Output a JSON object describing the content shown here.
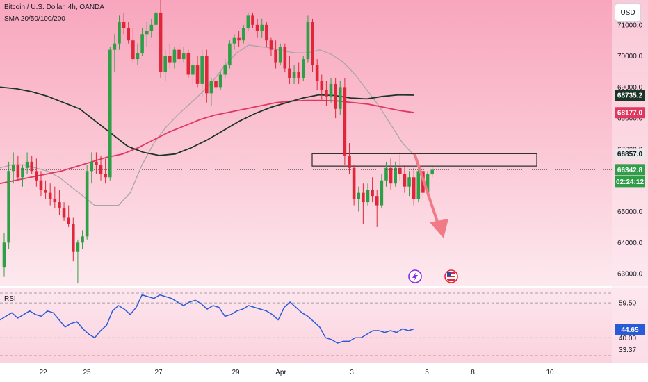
{
  "header": {
    "symbol_title": "Bitcoin / U.S. Dollar, 4h, OANDA",
    "indicator_label": "SMA 20/50/100/200",
    "currency_button": "USD"
  },
  "rsi_panel": {
    "label": "RSI",
    "ticks": [
      "59.50",
      "40.00",
      "33.37"
    ],
    "value_badge": "44.65"
  },
  "price_badges": {
    "sma_dark": "68735.2",
    "sma_red": "68177.0",
    "zone_top": "66857.0",
    "current_price": "66342.8",
    "countdown": "02:24:12"
  },
  "price_axis_ticks": [
    "71000.0",
    "70000.0",
    "69000.0",
    "68000.0",
    "67000.0",
    "65000.0",
    "64000.0",
    "63000.0"
  ],
  "time_axis_labels": [
    "22",
    "25",
    "27",
    "29",
    "Apr",
    "3",
    "5",
    "8",
    "10"
  ],
  "event_icons": [
    "lightning-icon",
    "us-flag-icon"
  ],
  "colors": {
    "bull": "#2e9e47",
    "bear": "#e0273a",
    "sma_dark": "#1a3527",
    "sma_red": "#e0375f",
    "sma_grey": "#a6a6a6",
    "rsi_line": "#2a5bd7",
    "arrow": "#f07b86",
    "price_badge": "#2e9e47",
    "rsi_badge": "#2a5bd7"
  },
  "chart_data": {
    "type": "candlestick",
    "ylim": [
      62600,
      71800
    ],
    "candles": [
      {
        "o": 63200,
        "h": 64300,
        "l": 62900,
        "c": 64000
      },
      {
        "o": 64000,
        "h": 66600,
        "l": 63800,
        "c": 66300
      },
      {
        "o": 66300,
        "h": 66900,
        "l": 65900,
        "c": 66500
      },
      {
        "o": 66500,
        "h": 66800,
        "l": 66000,
        "c": 66100
      },
      {
        "o": 66100,
        "h": 66500,
        "l": 65800,
        "c": 66400
      },
      {
        "o": 66400,
        "h": 66900,
        "l": 66200,
        "c": 66600
      },
      {
        "o": 66600,
        "h": 66800,
        "l": 66200,
        "c": 66300
      },
      {
        "o": 66300,
        "h": 66700,
        "l": 65800,
        "c": 66000
      },
      {
        "o": 66000,
        "h": 66300,
        "l": 65500,
        "c": 65700
      },
      {
        "o": 65700,
        "h": 66000,
        "l": 65400,
        "c": 65600
      },
      {
        "o": 65600,
        "h": 65900,
        "l": 65200,
        "c": 65400
      },
      {
        "o": 65400,
        "h": 65800,
        "l": 65100,
        "c": 65300
      },
      {
        "o": 65300,
        "h": 65700,
        "l": 64900,
        "c": 65100
      },
      {
        "o": 65100,
        "h": 65300,
        "l": 64700,
        "c": 64800
      },
      {
        "o": 64800,
        "h": 65200,
        "l": 64500,
        "c": 64600
      },
      {
        "o": 64600,
        "h": 64800,
        "l": 63400,
        "c": 63700
      },
      {
        "o": 63700,
        "h": 64100,
        "l": 62700,
        "c": 64000
      },
      {
        "o": 64000,
        "h": 64400,
        "l": 63800,
        "c": 64200
      },
      {
        "o": 64200,
        "h": 66500,
        "l": 64100,
        "c": 66300
      },
      {
        "o": 66300,
        "h": 66900,
        "l": 65900,
        "c": 66600
      },
      {
        "o": 66600,
        "h": 66900,
        "l": 66200,
        "c": 66500
      },
      {
        "o": 66500,
        "h": 66800,
        "l": 66000,
        "c": 66200
      },
      {
        "o": 66200,
        "h": 66700,
        "l": 65900,
        "c": 66100
      },
      {
        "o": 66100,
        "h": 70300,
        "l": 66000,
        "c": 70200
      },
      {
        "o": 70200,
        "h": 70700,
        "l": 69500,
        "c": 70400
      },
      {
        "o": 70400,
        "h": 71300,
        "l": 70200,
        "c": 71100
      },
      {
        "o": 71100,
        "h": 71400,
        "l": 70700,
        "c": 70900
      },
      {
        "o": 70900,
        "h": 71100,
        "l": 70400,
        "c": 70500
      },
      {
        "o": 70500,
        "h": 70900,
        "l": 69800,
        "c": 69900
      },
      {
        "o": 69900,
        "h": 70400,
        "l": 69700,
        "c": 70100
      },
      {
        "o": 70100,
        "h": 70900,
        "l": 70000,
        "c": 70700
      },
      {
        "o": 70700,
        "h": 71100,
        "l": 70300,
        "c": 70800
      },
      {
        "o": 70800,
        "h": 71200,
        "l": 70600,
        "c": 71000
      },
      {
        "o": 71000,
        "h": 71600,
        "l": 70800,
        "c": 71400
      },
      {
        "o": 71400,
        "h": 71800,
        "l": 69300,
        "c": 69500
      },
      {
        "o": 69500,
        "h": 70200,
        "l": 69200,
        "c": 70000
      },
      {
        "o": 70000,
        "h": 70400,
        "l": 69600,
        "c": 69800
      },
      {
        "o": 69800,
        "h": 70300,
        "l": 69600,
        "c": 70200
      },
      {
        "o": 70200,
        "h": 70400,
        "l": 69700,
        "c": 69900
      },
      {
        "o": 69900,
        "h": 70300,
        "l": 69800,
        "c": 70100
      },
      {
        "o": 70100,
        "h": 70200,
        "l": 69300,
        "c": 69400
      },
      {
        "o": 69400,
        "h": 69900,
        "l": 69100,
        "c": 69700
      },
      {
        "o": 69700,
        "h": 70000,
        "l": 69000,
        "c": 69100
      },
      {
        "o": 69100,
        "h": 70200,
        "l": 68700,
        "c": 70000
      },
      {
        "o": 70000,
        "h": 70200,
        "l": 68500,
        "c": 68800
      },
      {
        "o": 68800,
        "h": 69300,
        "l": 68400,
        "c": 69200
      },
      {
        "o": 69200,
        "h": 69500,
        "l": 68800,
        "c": 69000
      },
      {
        "o": 69000,
        "h": 69500,
        "l": 68900,
        "c": 69400
      },
      {
        "o": 69400,
        "h": 69900,
        "l": 69300,
        "c": 69700
      },
      {
        "o": 69700,
        "h": 70500,
        "l": 69600,
        "c": 70400
      },
      {
        "o": 70400,
        "h": 70700,
        "l": 70200,
        "c": 70600
      },
      {
        "o": 70600,
        "h": 70800,
        "l": 70300,
        "c": 70500
      },
      {
        "o": 70500,
        "h": 71000,
        "l": 70400,
        "c": 70900
      },
      {
        "o": 70900,
        "h": 71400,
        "l": 70800,
        "c": 71300
      },
      {
        "o": 71300,
        "h": 71400,
        "l": 70900,
        "c": 71000
      },
      {
        "o": 71000,
        "h": 71200,
        "l": 70600,
        "c": 70800
      },
      {
        "o": 70800,
        "h": 71200,
        "l": 70600,
        "c": 71000
      },
      {
        "o": 71000,
        "h": 71100,
        "l": 70300,
        "c": 70500
      },
      {
        "o": 70500,
        "h": 70600,
        "l": 70000,
        "c": 70200
      },
      {
        "o": 70200,
        "h": 70500,
        "l": 69600,
        "c": 69800
      },
      {
        "o": 69800,
        "h": 70400,
        "l": 69700,
        "c": 70300
      },
      {
        "o": 70300,
        "h": 70400,
        "l": 69500,
        "c": 69600
      },
      {
        "o": 69600,
        "h": 70000,
        "l": 69100,
        "c": 69300
      },
      {
        "o": 69300,
        "h": 69700,
        "l": 69100,
        "c": 69500
      },
      {
        "o": 69500,
        "h": 69800,
        "l": 69100,
        "c": 69300
      },
      {
        "o": 69300,
        "h": 70000,
        "l": 69200,
        "c": 69900
      },
      {
        "o": 69900,
        "h": 71300,
        "l": 69800,
        "c": 71100
      },
      {
        "o": 71100,
        "h": 71200,
        "l": 69500,
        "c": 69700
      },
      {
        "o": 69700,
        "h": 69900,
        "l": 68900,
        "c": 69200
      },
      {
        "o": 69200,
        "h": 69400,
        "l": 68600,
        "c": 68900
      },
      {
        "o": 68900,
        "h": 69200,
        "l": 68400,
        "c": 68700
      },
      {
        "o": 68700,
        "h": 69300,
        "l": 68500,
        "c": 69100
      },
      {
        "o": 69100,
        "h": 69300,
        "l": 68000,
        "c": 68300
      },
      {
        "o": 68300,
        "h": 69200,
        "l": 68100,
        "c": 69000
      },
      {
        "o": 69000,
        "h": 69300,
        "l": 66500,
        "c": 66800
      },
      {
        "o": 66800,
        "h": 67200,
        "l": 66200,
        "c": 66400
      },
      {
        "o": 66400,
        "h": 66500,
        "l": 65200,
        "c": 65400
      },
      {
        "o": 65400,
        "h": 65800,
        "l": 65000,
        "c": 65600
      },
      {
        "o": 65600,
        "h": 65900,
        "l": 64600,
        "c": 65300
      },
      {
        "o": 65300,
        "h": 65900,
        "l": 65200,
        "c": 65700
      },
      {
        "o": 65700,
        "h": 66100,
        "l": 65300,
        "c": 65500
      },
      {
        "o": 65500,
        "h": 65700,
        "l": 64500,
        "c": 65200
      },
      {
        "o": 65200,
        "h": 66200,
        "l": 65100,
        "c": 66000
      },
      {
        "o": 66000,
        "h": 66600,
        "l": 65800,
        "c": 66400
      },
      {
        "o": 66400,
        "h": 66700,
        "l": 65700,
        "c": 65900
      },
      {
        "o": 65900,
        "h": 66600,
        "l": 65800,
        "c": 66400
      },
      {
        "o": 66400,
        "h": 66900,
        "l": 66000,
        "c": 66200
      },
      {
        "o": 66200,
        "h": 66500,
        "l": 65600,
        "c": 65800
      },
      {
        "o": 65800,
        "h": 66300,
        "l": 65500,
        "c": 66100
      },
      {
        "o": 66100,
        "h": 66400,
        "l": 65200,
        "c": 65400
      },
      {
        "o": 65400,
        "h": 66500,
        "l": 65300,
        "c": 66300
      },
      {
        "o": 66300,
        "h": 66500,
        "l": 65400,
        "c": 65600
      },
      {
        "o": 65600,
        "h": 66300,
        "l": 65500,
        "c": 66200
      },
      {
        "o": 66200,
        "h": 66500,
        "l": 66100,
        "c": 66343
      }
    ],
    "sma_dark": [
      69000,
      68950,
      68850,
      68700,
      68500,
      68300,
      67900,
      67500,
      67100,
      66900,
      66800,
      66850,
      67050,
      67300,
      67600,
      67900,
      68150,
      68350,
      68500,
      68650,
      68750,
      68730,
      68650,
      68620,
      68700,
      68750,
      68740
    ],
    "sma_red": [
      65900,
      66000,
      66100,
      66200,
      66300,
      66450,
      66600,
      66750,
      66850,
      67050,
      67300,
      67550,
      67750,
      67950,
      68100,
      68200,
      68300,
      68400,
      68500,
      68550,
      68570,
      68570,
      68550,
      68500,
      68450,
      68350,
      68250,
      68177
    ],
    "sma_grey": [
      66400,
      66500,
      66500,
      66400,
      66300,
      66100,
      65800,
      65500,
      65200,
      65200,
      65200,
      65600,
      66500,
      67200,
      67700,
      68100,
      68450,
      68800,
      69200,
      69700,
      70100,
      70350,
      70300,
      70250,
      70150,
      70100,
      70100,
      70200,
      70050,
      69800,
      69400,
      68900,
      68400,
      67800,
      67200,
      66800
    ],
    "zone": {
      "from": 66460,
      "to": 66857
    },
    "current_price": 66342.8,
    "rsi": {
      "ylim": [
        30,
        65
      ],
      "bands": [
        59.5,
        40
      ],
      "values": [
        50,
        52,
        54,
        51,
        53,
        55,
        53,
        52,
        55,
        54,
        50,
        46,
        48,
        49,
        45,
        42,
        40,
        44,
        47,
        55,
        58,
        56,
        53,
        57,
        64,
        63,
        62,
        64,
        63,
        62,
        60,
        58,
        60,
        61,
        59,
        56,
        58,
        57,
        52,
        53,
        55,
        56,
        58,
        57,
        56,
        55,
        53,
        50,
        57,
        60,
        57,
        54,
        52,
        49,
        46,
        40,
        39,
        37,
        38,
        38,
        40,
        40,
        42,
        44,
        44,
        43,
        44,
        43,
        45,
        44,
        45
      ]
    }
  }
}
